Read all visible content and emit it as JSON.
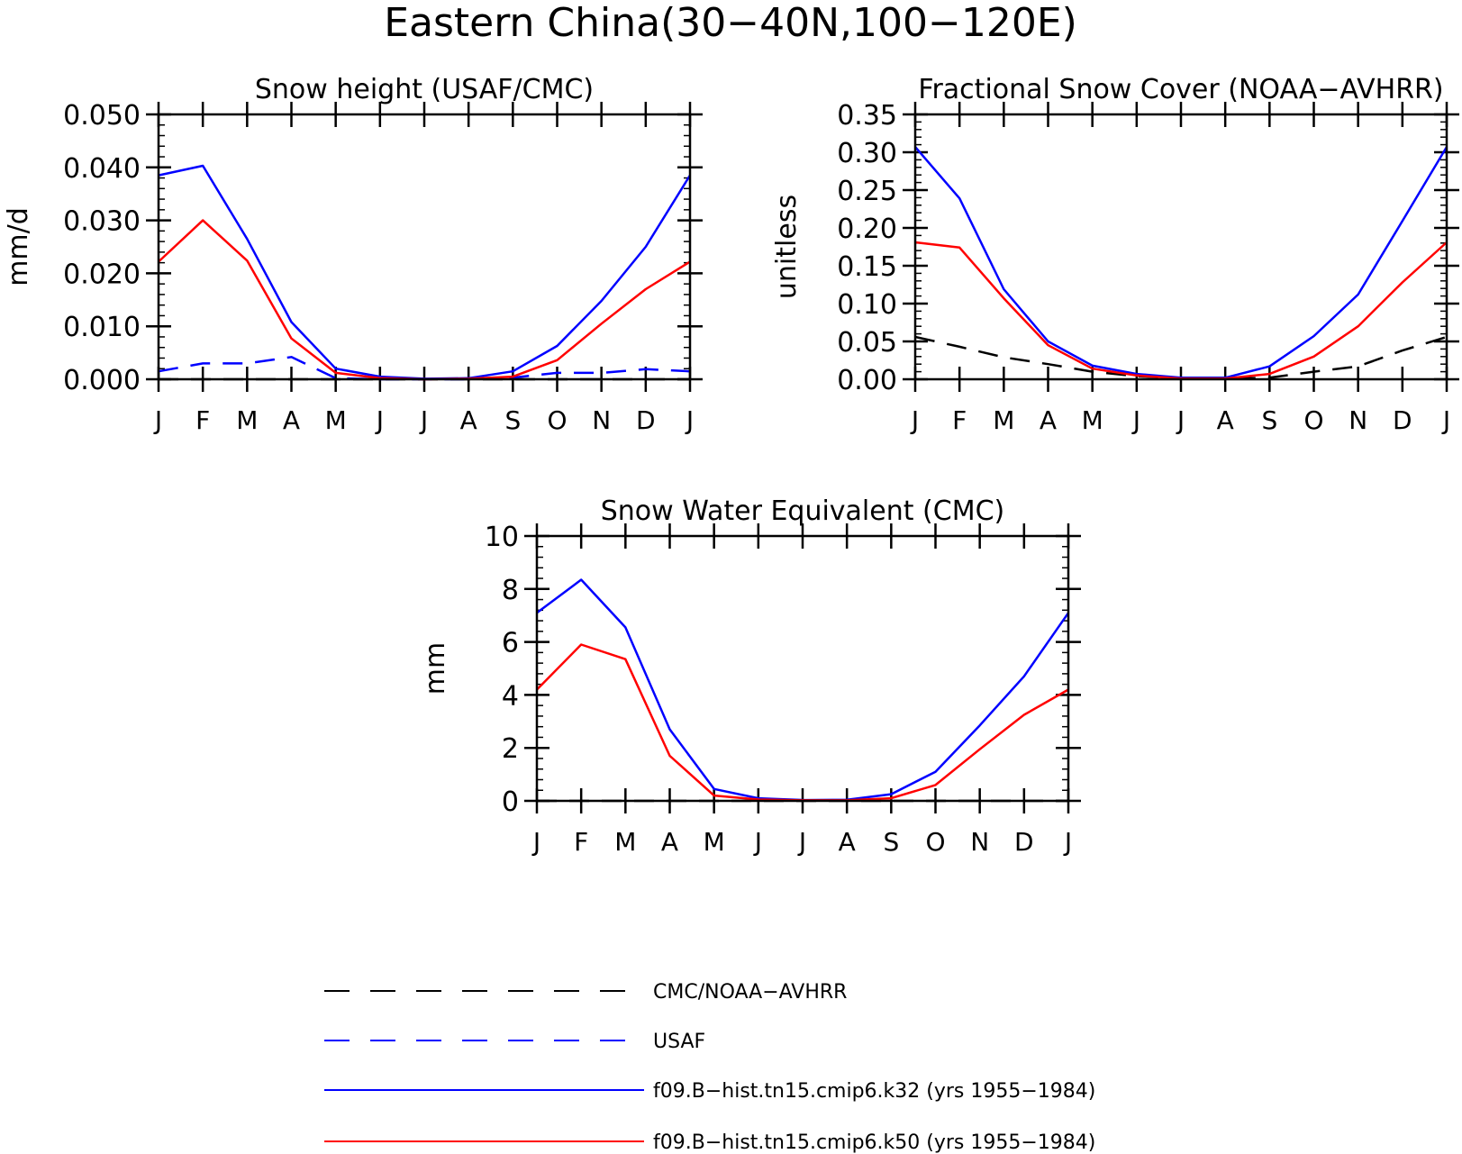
{
  "figure": {
    "title": "Eastern China(30−40N,100−120E)"
  },
  "chart_data": [
    {
      "type": "line",
      "title": "Snow height (USAF/CMC)",
      "xlabel": "",
      "ylabel": "mm/d",
      "categories": [
        "J",
        "F",
        "M",
        "A",
        "M",
        "J",
        "J",
        "A",
        "S",
        "O",
        "N",
        "D",
        "J"
      ],
      "ylim": [
        0,
        0.05
      ],
      "yticks": [
        "0.000",
        "0.010",
        "0.020",
        "0.030",
        "0.040",
        "0.050"
      ],
      "series": [
        {
          "name": "CMC/NOAA-AVHRR",
          "color": "#000000",
          "dashed": true,
          "values": [
            0,
            0,
            0,
            0,
            0,
            0,
            0,
            0,
            0,
            0,
            0,
            0,
            0
          ]
        },
        {
          "name": "USAF",
          "color": "#0000ff",
          "dashed": true,
          "values": [
            0.0015,
            0.003,
            0.003,
            0.0042,
            0.0002,
            0,
            0,
            0,
            0.0003,
            0.0012,
            0.0012,
            0.0019,
            0.0015
          ]
        },
        {
          "name": "f09.B−hist.tn15.cmip6.k32 (yrs 1955−1984)",
          "color": "#0000ff",
          "dashed": false,
          "values": [
            0.0385,
            0.0403,
            0.0265,
            0.0108,
            0.002,
            0.0005,
            0.0001,
            0.0002,
            0.0015,
            0.0063,
            0.0148,
            0.025,
            0.0385
          ]
        },
        {
          "name": "f09.B−hist.tn15.cmip6.k50 (yrs 1955−1984)",
          "color": "#ff0000",
          "dashed": false,
          "values": [
            0.0222,
            0.03,
            0.0224,
            0.0077,
            0.0012,
            0.0002,
            0,
            0.0001,
            0.0005,
            0.0036,
            0.0105,
            0.017,
            0.0222
          ]
        }
      ]
    },
    {
      "type": "line",
      "title": "Fractional Snow Cover (NOAA−AVHRR)",
      "xlabel": "",
      "ylabel": "unitless",
      "categories": [
        "J",
        "F",
        "M",
        "A",
        "M",
        "J",
        "J",
        "A",
        "S",
        "O",
        "N",
        "D",
        "J"
      ],
      "ylim": [
        0,
        0.35
      ],
      "yticks": [
        "0.00",
        "0.05",
        "0.10",
        "0.15",
        "0.20",
        "0.25",
        "0.30",
        "0.35"
      ],
      "series": [
        {
          "name": "CMC/NOAA-AVHRR",
          "color": "#000000",
          "dashed": true,
          "values": [
            0.056,
            0.043,
            0.029,
            0.02,
            0.01,
            0.004,
            0.001,
            0.001,
            0.002,
            0.01,
            0.017,
            0.038,
            0.056
          ]
        },
        {
          "name": "f09.B−hist.tn15.cmip6.k32 (yrs 1955−1984)",
          "color": "#0000ff",
          "dashed": false,
          "values": [
            0.307,
            0.239,
            0.119,
            0.05,
            0.018,
            0.007,
            0.002,
            0.002,
            0.017,
            0.057,
            0.112,
            0.209,
            0.307
          ]
        },
        {
          "name": "f09.B−hist.tn15.cmip6.k50 (yrs 1955−1984)",
          "color": "#ff0000",
          "dashed": false,
          "values": [
            0.181,
            0.174,
            0.107,
            0.045,
            0.014,
            0.005,
            0.001,
            0.001,
            0.007,
            0.03,
            0.07,
            0.128,
            0.181
          ]
        }
      ]
    },
    {
      "type": "line",
      "title": "Snow Water Equivalent (CMC)",
      "xlabel": "",
      "ylabel": "mm",
      "categories": [
        "J",
        "F",
        "M",
        "A",
        "M",
        "J",
        "J",
        "A",
        "S",
        "O",
        "N",
        "D",
        "J"
      ],
      "ylim": [
        0,
        10
      ],
      "yticks": [
        "0",
        "2",
        "4",
        "6",
        "8",
        "10"
      ],
      "series": [
        {
          "name": "CMC/NOAA-AVHRR",
          "color": "#000000",
          "dashed": true,
          "values": [
            0,
            0,
            0,
            0,
            0,
            0,
            0,
            0,
            0,
            0,
            0,
            0,
            0
          ]
        },
        {
          "name": "f09.B−hist.tn15.cmip6.k32 (yrs 1955−1984)",
          "color": "#0000ff",
          "dashed": false,
          "values": [
            7.1,
            8.35,
            6.55,
            2.7,
            0.45,
            0.1,
            0.03,
            0.04,
            0.25,
            1.1,
            2.85,
            4.7,
            7.1
          ]
        },
        {
          "name": "f09.B−hist.tn15.cmip6.k50 (yrs 1955−1984)",
          "color": "#ff0000",
          "dashed": false,
          "values": [
            4.2,
            5.9,
            5.35,
            1.7,
            0.2,
            0.05,
            0.02,
            0.02,
            0.1,
            0.6,
            1.95,
            3.25,
            4.2
          ]
        }
      ]
    }
  ],
  "legend": [
    {
      "label": "CMC/NOAA−AVHRR",
      "color": "#000000",
      "dashed": true
    },
    {
      "label": "USAF",
      "color": "#0000ff",
      "dashed": true
    },
    {
      "label": "f09.B−hist.tn15.cmip6.k32 (yrs 1955−1984)",
      "color": "#0000ff",
      "dashed": false
    },
    {
      "label": "f09.B−hist.tn15.cmip6.k50 (yrs 1955−1984)",
      "color": "#ff0000",
      "dashed": false
    }
  ]
}
